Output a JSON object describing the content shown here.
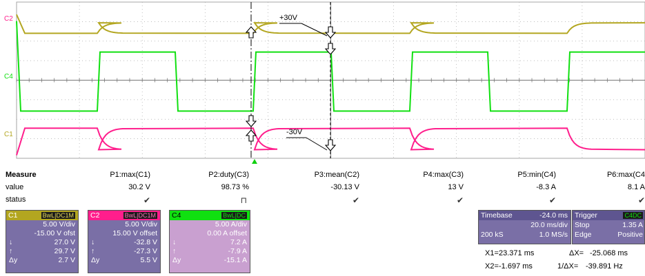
{
  "colors": {
    "c1": "#ff1e8c",
    "c2": "#b3a620",
    "c4": "#10e010",
    "grid": "#a6a6a6",
    "panel": "#7a6fa6",
    "panel_dark": "#5e5590",
    "c4panel": "#c9a0d0"
  },
  "scope": {
    "trace_labels": {
      "c2": "C2",
      "c4": "C4",
      "c1": "C1"
    },
    "annotations": {
      "pos": "+30V",
      "neg": "-30V"
    },
    "waveforms": {
      "c2_volts_per_div": 5.0,
      "c2_offset_v": -15.0,
      "c2_high_v": 29.7,
      "c2_low_v": 27.0,
      "c4_amps_per_div": 5.0,
      "c4_high_a": 7.2,
      "c4_low_a": -7.9,
      "c1_volts_per_div": 5.0,
      "c1_offset_v": 15.0,
      "c1_high_v": -27.3,
      "c1_low_v": -32.8,
      "period_ms": 46.0
    }
  },
  "measure": {
    "title": "Measure",
    "row_value": "value",
    "row_status": "status",
    "params": [
      {
        "name": "P1:max(C1)",
        "value": "30.2 V",
        "status": "✔"
      },
      {
        "name": "P2:duty(C3)",
        "value": "98.73 %",
        "status": "⊓"
      },
      {
        "name": "P3:mean(C2)",
        "value": "-30.13 V",
        "status": "✔"
      },
      {
        "name": "P4:max(C3)",
        "value": "13 V",
        "status": "✔"
      },
      {
        "name": "P5:min(C4)",
        "value": "-8.3 A",
        "status": "✔"
      },
      {
        "name": "P6:max(C4",
        "value": "8.1 A",
        "status": "✔"
      }
    ]
  },
  "channels": [
    {
      "id": "C1",
      "badge1": "BwL",
      "badge2": "DC1M",
      "scale": "5.00 V/div",
      "offset": "-15.00 V ofst",
      "down": "27.0 V",
      "up": "29.7 V",
      "dy": "2.7 V"
    },
    {
      "id": "C2",
      "badge1": "BwL",
      "badge2": "DC1M",
      "scale": "5.00 V/div",
      "offset": "15.00 V offset",
      "down": "-32.8 V",
      "up": "-27.3 V",
      "dy": "5.5 V"
    },
    {
      "id": "C4",
      "badge1": "BwL",
      "badge2": "DC",
      "scale": "5.00 A/div",
      "offset": "0.00 A offset",
      "down": "7.2 A",
      "up": "-7.9 A",
      "dy": "-15.1 A"
    }
  ],
  "symbols": {
    "down": "↓",
    "up": "↑",
    "dy": "Δy"
  },
  "timebase": {
    "label": "Timebase",
    "delay": "-24.0 ms",
    "per_div": "20.0 ms/div",
    "samples": "200 kS",
    "rate": "1.0 MS/s"
  },
  "trigger": {
    "label": "Trigger",
    "badge": "C4",
    "mode_badge": "DC",
    "mode": "Stop",
    "level": "1.35 A",
    "type": "Edge",
    "slope": "Positive"
  },
  "cursors": {
    "x1_label": "X1=",
    "x1": "23.371 ms",
    "dx_label": "ΔX=",
    "dx": "-25.068 ms",
    "x2_label": "X2=",
    "x2": "-1.697 ms",
    "inv_label": "1/ΔX=",
    "inv": "-39.891 Hz"
  }
}
